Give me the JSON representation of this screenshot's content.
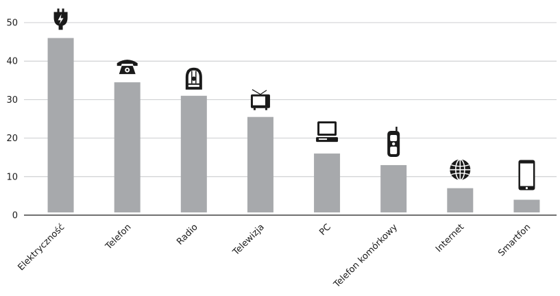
{
  "chart_data": {
    "type": "bar",
    "categories": [
      "Elektryczność",
      "Telefon",
      "Radio",
      "Telewizja",
      "PC",
      "Telefon komórkowy",
      "Internet",
      "Smartfon"
    ],
    "values": [
      46,
      34.5,
      31,
      25.5,
      16,
      13,
      7,
      4
    ],
    "icons": [
      "electric-plug-icon",
      "rotary-telephone-icon",
      "vintage-radio-icon",
      "television-icon",
      "personal-computer-icon",
      "mobile-phone-icon",
      "globe-icon",
      "smartphone-icon"
    ],
    "yticks": [
      "0",
      "10",
      "20",
      "30",
      "40",
      "50"
    ],
    "ylim": [
      0,
      50
    ],
    "grid": true,
    "colors": {
      "bar": "#a7a9ac",
      "grid": "#bcbec0",
      "axis": "#1a1a1a",
      "icon": "#1a1a1a"
    }
  }
}
